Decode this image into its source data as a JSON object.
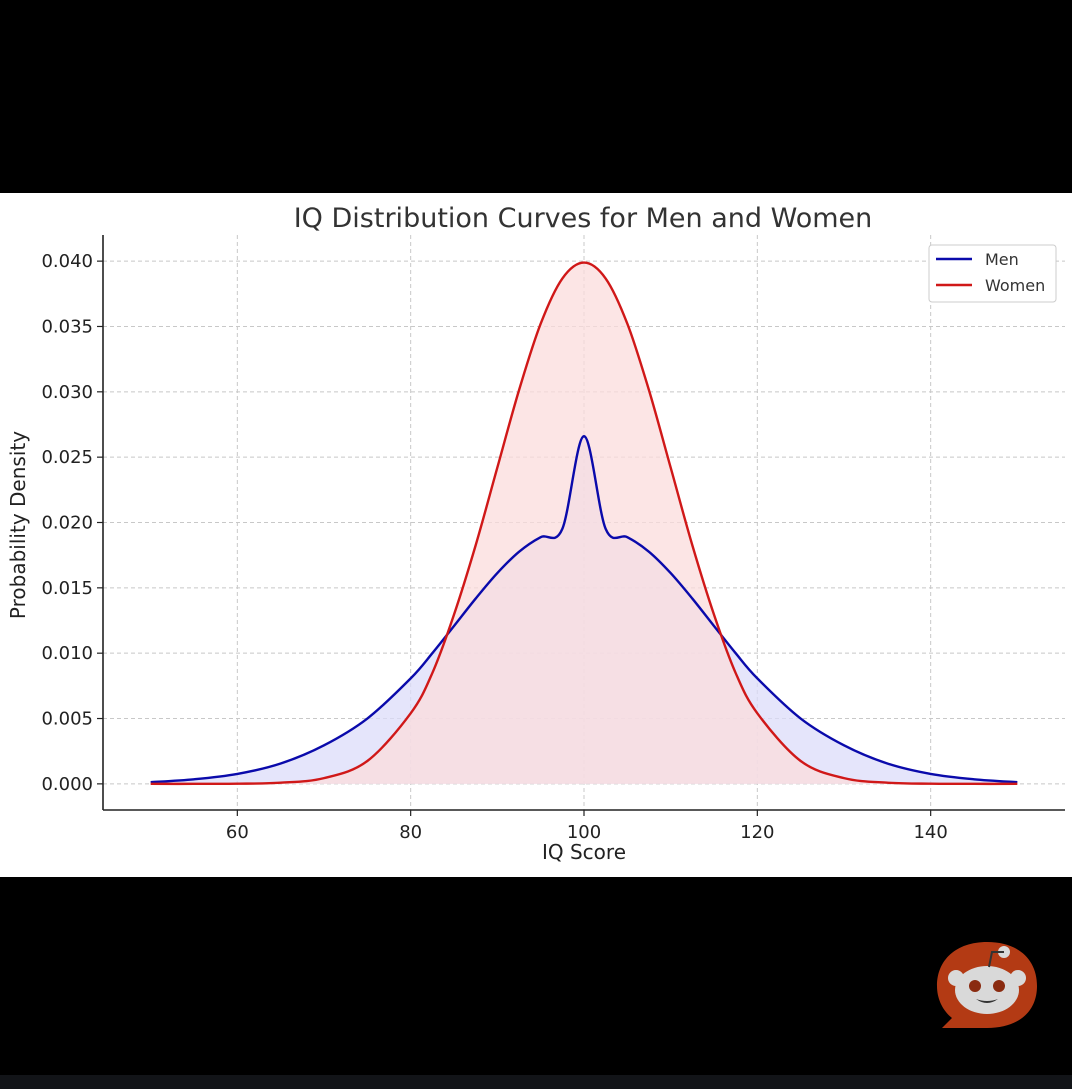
{
  "chart_data": {
    "type": "line",
    "title": "IQ Distribution Curves for Men and Women",
    "xlabel": "IQ Score",
    "ylabel": "Probability Density",
    "xlim": [
      44.5,
      155.5
    ],
    "ylim": [
      -0.002,
      0.042
    ],
    "xticks": [
      60,
      80,
      100,
      120,
      140
    ],
    "xtick_labels": [
      "60",
      "80",
      "100",
      "120",
      "140"
    ],
    "yticks": [
      0.0,
      0.005,
      0.01,
      0.015,
      0.02,
      0.025,
      0.03,
      0.035,
      0.04
    ],
    "ytick_labels": [
      "0.000",
      "0.005",
      "0.010",
      "0.015",
      "0.020",
      "0.025",
      "0.030",
      "0.035",
      "0.040"
    ],
    "grid": true,
    "legend_position": "top-right",
    "x": [
      50,
      55,
      60,
      65,
      70,
      75,
      80,
      82.5,
      85,
      87.5,
      90,
      92.5,
      95,
      97.5,
      100,
      102.5,
      105,
      107.5,
      110,
      112.5,
      115,
      117.5,
      120,
      125,
      130,
      135,
      140,
      145,
      150
    ],
    "series": [
      {
        "name": "Men",
        "color": "#0a0aab",
        "fill": "#dcdcfa",
        "values": [
          0.00013,
          0.00035,
          0.00076,
          0.00156,
          0.00295,
          0.005,
          0.00807,
          0.01,
          0.01208,
          0.01418,
          0.01613,
          0.01776,
          0.01888,
          0.01951,
          0.0266,
          0.01951,
          0.01888,
          0.01776,
          0.01613,
          0.01418,
          0.01208,
          0.01,
          0.00807,
          0.005,
          0.00295,
          0.00156,
          0.00076,
          0.00035,
          0.00013
        ]
      },
      {
        "name": "Women",
        "color": "#d01818",
        "fill": "#fbdcdc",
        "values": [
          0.0,
          0.0,
          1e-05,
          9e-05,
          0.00044,
          0.00175,
          0.0054,
          0.00848,
          0.01295,
          0.01826,
          0.0242,
          0.03012,
          0.03521,
          0.03867,
          0.03989,
          0.03867,
          0.03521,
          0.03012,
          0.0242,
          0.01826,
          0.01295,
          0.00848,
          0.0054,
          0.00175,
          0.00044,
          9e-05,
          1e-05,
          0.0,
          0.0
        ]
      }
    ]
  }
}
